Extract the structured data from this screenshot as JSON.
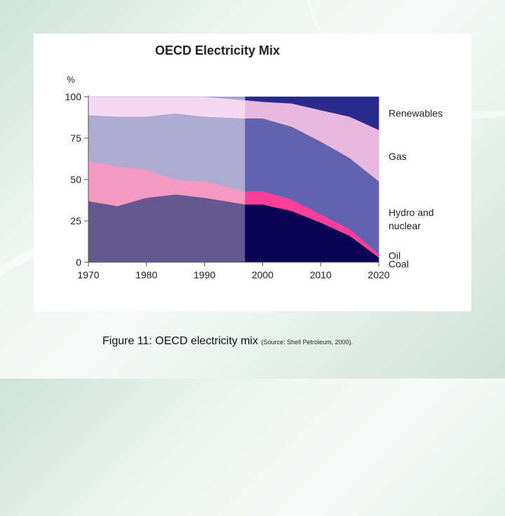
{
  "caption": {
    "main": "Figure 11: OECD electricity mix",
    "source": "(Source: Shell Petroleum, 2000)."
  },
  "chart_data": {
    "type": "area",
    "title": "OECD Electricity Mix",
    "ylabel": "%",
    "xlabel": "",
    "stacked": true,
    "xlim": [
      1970,
      2020
    ],
    "ylim": [
      0,
      100
    ],
    "x_ticks": [
      1970,
      1980,
      1990,
      2000,
      2010,
      2020
    ],
    "y_ticks": [
      0,
      25,
      50,
      75,
      100
    ],
    "projection_start": 1997,
    "x": [
      1970,
      1975,
      1980,
      1985,
      1990,
      1997,
      2000,
      2005,
      2010,
      2015,
      2020
    ],
    "series": [
      {
        "name": "Coal",
        "values": [
          37,
          34,
          39,
          41,
          39,
          35,
          35,
          31,
          24,
          16,
          3
        ],
        "color_hist": "#645892",
        "color_proj": "#0a0552"
      },
      {
        "name": "Oil",
        "values": [
          24,
          24,
          17,
          9,
          10,
          8,
          8,
          7,
          5,
          4,
          2
        ],
        "color_hist": "#f49ac2",
        "color_proj": "#ff3f9a"
      },
      {
        "name": "Hydro and nuclear",
        "values": [
          28,
          30,
          32,
          40,
          39,
          44,
          44,
          44,
          44,
          43,
          44
        ],
        "color_hist": "#aeaad2",
        "color_proj": "#6163ae"
      },
      {
        "name": "Gas",
        "values": [
          11,
          12,
          12,
          10,
          12,
          11,
          10,
          14,
          19,
          25,
          31
        ],
        "color_hist": "#f4d8ef",
        "color_proj": "#e8b8de"
      },
      {
        "name": "Renewables",
        "values": [
          0,
          0,
          0,
          0,
          0,
          2,
          3,
          4,
          8,
          12,
          20
        ],
        "color_hist": "#a3a0d4",
        "color_proj": "#2a2b8c"
      }
    ],
    "legend": [
      {
        "label": "Renewables",
        "y": 90
      },
      {
        "label": "Gas",
        "y": 64
      },
      {
        "label": "Hydro and",
        "y": 30
      },
      {
        "label": "nuclear",
        "y": 22
      },
      {
        "label": "Oil",
        "y": 4
      },
      {
        "label": "Coal",
        "y": -1
      }
    ]
  }
}
